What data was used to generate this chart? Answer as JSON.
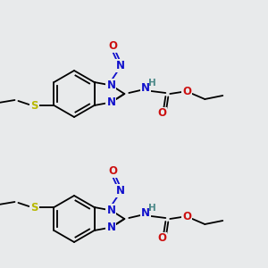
{
  "background_color": "#e8eaeb",
  "atom_colors": {
    "N": "#1010cc",
    "O": "#cc1010",
    "S": "#b8b800",
    "C": "#000000",
    "H": "#4a8888"
  },
  "bond_lw": 1.3,
  "font_size": 8.5
}
